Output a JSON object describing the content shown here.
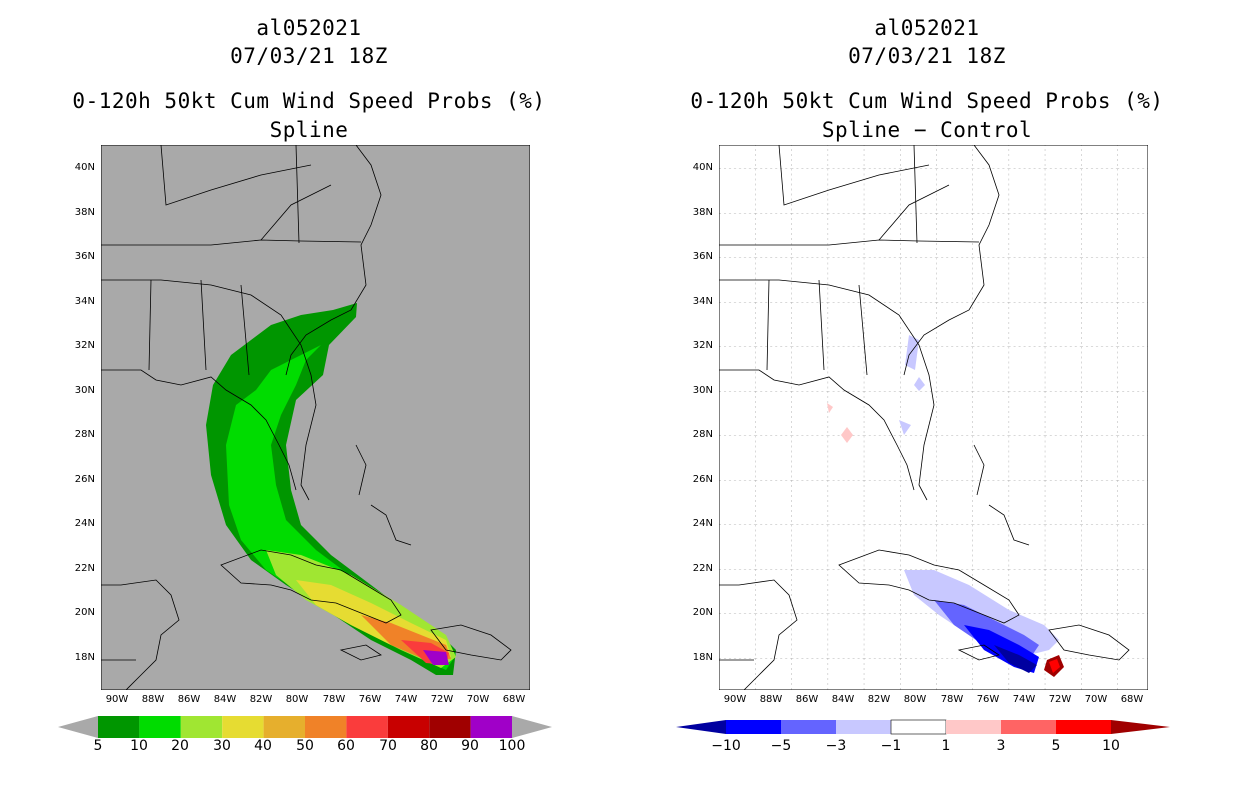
{
  "panels": [
    {
      "storm_id": "al052021",
      "datetime": "07/03/21 18Z",
      "product": "0-120h 50kt Cum Wind Speed Probs (%)",
      "subtitle": "Spline",
      "colorbar": {
        "labels": [
          "5",
          "10",
          "20",
          "30",
          "40",
          "50",
          "60",
          "70",
          "80",
          "90",
          "100"
        ],
        "colors": [
          "#009600",
          "#00dc00",
          "#a0e632",
          "#e6dc32",
          "#e6af2d",
          "#f08228",
          "#fa3c3c",
          "#c80000",
          "#a00000",
          "#a000c8"
        ]
      }
    },
    {
      "storm_id": "al052021",
      "datetime": "07/03/21 18Z",
      "product": "0-120h 50kt Cum Wind Speed Probs (%)",
      "subtitle": "Spline − Control",
      "colorbar": {
        "labels": [
          "−10",
          "−5",
          "−3",
          "−1",
          "1",
          "3",
          "5",
          "10"
        ],
        "colors": [
          "#0000a0",
          "#0000ff",
          "#6464ff",
          "#c8c8ff",
          "#ffffff",
          "#ffc8c8",
          "#ff6464",
          "#ff0000",
          "#a00000"
        ]
      }
    }
  ],
  "axes": {
    "lat_labels": [
      "40N",
      "38N",
      "36N",
      "34N",
      "32N",
      "30N",
      "28N",
      "26N",
      "24N",
      "22N",
      "20N",
      "18N"
    ],
    "lon_labels": [
      "90W",
      "88W",
      "86W",
      "84W",
      "82W",
      "80W",
      "78W",
      "76W",
      "74W",
      "72W",
      "70W",
      "68W"
    ]
  }
}
